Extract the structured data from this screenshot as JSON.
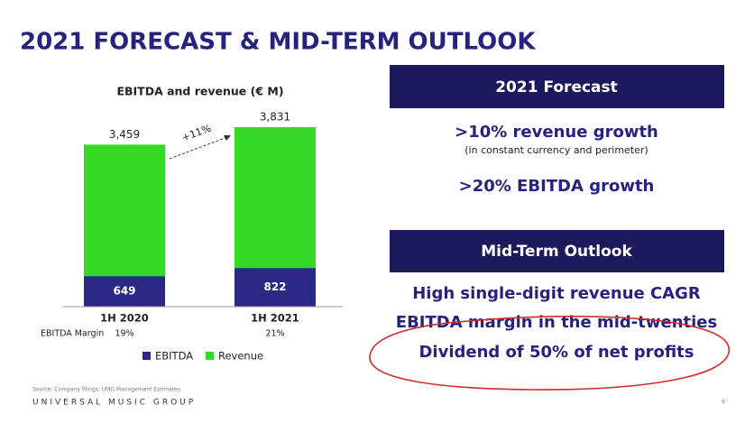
{
  "slide": {
    "title": "2021 FORECAST & MID-TERM OUTLOOK",
    "source": "Source: Company filings; UMG Management Estimates.",
    "footer": "UNIVERSAL MUSIC GROUP",
    "page": 9
  },
  "chart_data": {
    "type": "bar",
    "title": "EBITDA and revenue (€ M)",
    "overlap": true,
    "categories": [
      "1H 2020",
      "1H 2021"
    ],
    "series": [
      {
        "name": "EBITDA",
        "color": "#2b2886",
        "values": [
          649,
          822
        ]
      },
      {
        "name": "Revenue",
        "color": "#35d926",
        "values": [
          3459,
          3831
        ],
        "value_labels": [
          "3,459",
          "3,831"
        ]
      }
    ],
    "annotation": "+11%",
    "margin_label": "EBITDA Margin",
    "margin_labels": [
      "19%",
      "21%"
    ]
  },
  "forecast": {
    "header": "2021 Forecast",
    "items": [
      ">10% revenue growth",
      "(in constant currency and perimeter)",
      ">20% EBITDA growth"
    ]
  },
  "outlook": {
    "header": "Mid-Term Outlook",
    "items": [
      "High single-digit revenue CAGR",
      "EBITDA margin in the mid-twenties",
      "Dividend of 50% of net profits"
    ]
  }
}
